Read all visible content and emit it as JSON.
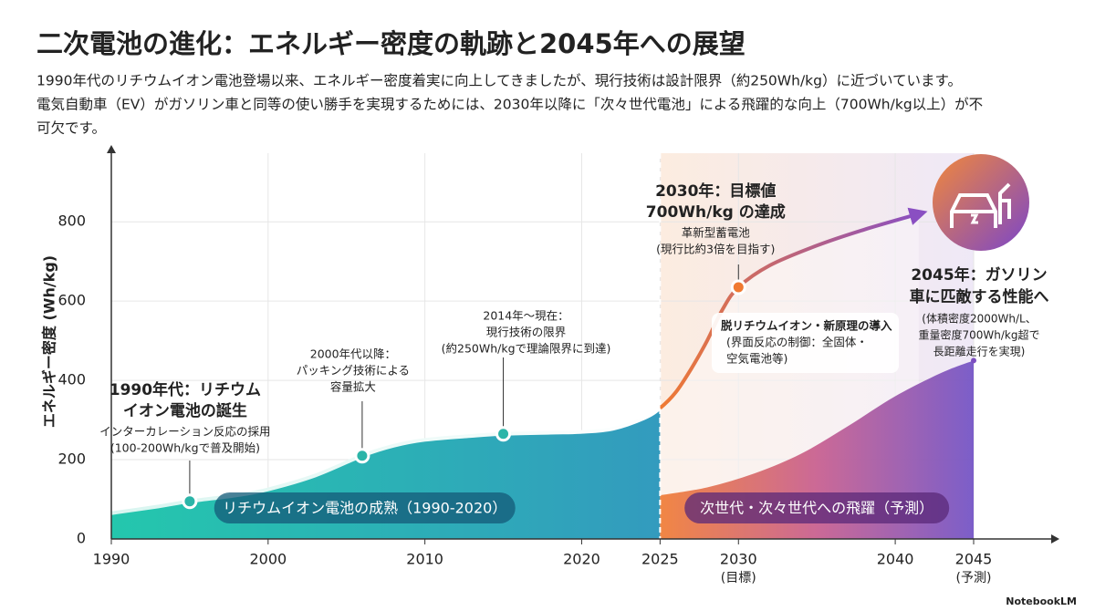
{
  "header": {
    "title": "二次電池の進化：エネルギー密度の軌跡と2045年への展望",
    "description": [
      "1990年代のリチウムイオン電池登場以来、エネルギー密度着実に向上してきましたが、現行技術は設計限界（約250Wh/kg）に近づいています。",
      "電気自動車（EV）がガソリン車と同等の使い勝手を実現するためには、2030年以降に「次々世代電池」による飛躍的な向上（700Wh/kg以上）が不",
      "可欠です。"
    ]
  },
  "chart_data": {
    "type": "line",
    "y_label": "エネルギー密度 (Wh/kg)",
    "xlim": [
      1990,
      2050
    ],
    "ylim": [
      0,
      950
    ],
    "xticks": [
      1990,
      2000,
      2010,
      2020,
      2025,
      {
        "value": 2030,
        "label": "2030",
        "note": "(目標)"
      },
      2040,
      {
        "value": 2045,
        "label": "2045",
        "note": "(予測)"
      }
    ],
    "yticks": [
      0,
      200,
      400,
      600,
      800
    ],
    "series": [
      {
        "color": "#8a4fc2",
        "x": [
          1990,
          1993,
          1995,
          1998,
          2000,
          2003,
          2006,
          2008,
          2010,
          2013,
          2015,
          2018,
          2020,
          2022,
          2024,
          2025,
          2026,
          2027,
          2028,
          2029,
          2030,
          2032,
          2035,
          2038,
          2041.5
        ],
        "values": [
          65,
          82,
          95,
          110,
          125,
          160,
          210,
          235,
          250,
          260,
          265,
          268,
          270,
          278,
          305,
          330,
          370,
          430,
          500,
          580,
          635,
          690,
          740,
          780,
          820
        ]
      },
      {
        "color": "#7d4fc0",
        "x": [
          2025,
          2028,
          2031,
          2034,
          2037,
          2040,
          2043,
          2045
        ],
        "values": [
          110,
          130,
          165,
          215,
          285,
          360,
          420,
          450
        ]
      }
    ],
    "annotations": [
      {
        "x": 1995,
        "y": 95,
        "title": [
          "1990年代：リチウム",
          "イオン電池の誕生"
        ],
        "text": [
          "インターカレーション反応の採用",
          "(100-200Wh/kgで普及開始)"
        ]
      },
      {
        "x": 2006,
        "y": 210,
        "title": [],
        "text": [
          "2000年代以降：",
          "パッキング技術による",
          "容量拡大"
        ]
      },
      {
        "x": 2015,
        "y": 265,
        "title": [],
        "text": [
          "2014年〜現在：",
          "現行技術の限界",
          "(約250Wh/kgで理論限界に到達)"
        ]
      },
      {
        "x": 2030,
        "y": 635,
        "title": [
          "2030年：目標値",
          "700Wh/kg の達成"
        ],
        "text": [
          "革新型蓄電池",
          "(現行比約3倍を目指す)"
        ]
      }
    ],
    "note_box": [
      "脱リチウムイオン・新原理の導入",
      "(界面反応の制御：全固体・",
      "空気電池等)"
    ],
    "outlook": {
      "title": [
        "2045年：ガソリン",
        "車に匹敵する性能へ"
      ],
      "text": [
        "(体積密度2000Wh/L、",
        "重量密度700Wh/kg超で",
        "長距離走行を実現)"
      ]
    },
    "bands": [
      "リチウムイオン電池の成熟（1990-2020）",
      "次世代・次々世代への飛躍（予測）"
    ]
  },
  "footer": "NotebookLM"
}
